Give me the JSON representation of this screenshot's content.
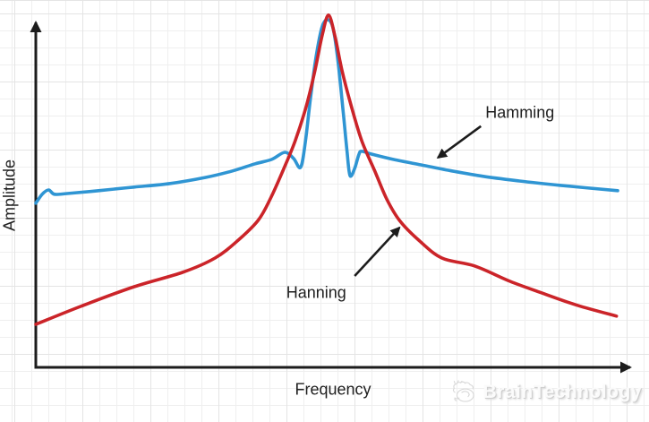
{
  "watermark": {
    "text": "BrainTechnology",
    "icon": "brain-icon"
  },
  "colors": {
    "background": "#ffffff",
    "axis": "#1c1c1c",
    "hamming_blue": "#2f95d3",
    "hanning_red": "#cb2429",
    "grid_minor": "#efefef",
    "grid_major": "#e4e4e4",
    "label_text": "#1f1f1f",
    "watermark_text": "#fbfbfb"
  },
  "chart_data": {
    "type": "line",
    "title": "",
    "xlabel": "Frequency",
    "ylabel": "Amplitude",
    "x_range": [
      0,
      1
    ],
    "y_range": [
      0,
      1
    ],
    "grid": true,
    "numeric_ticks": false,
    "legend_position": "inline-annotations",
    "series": [
      {
        "name": "Hamming",
        "color": "#2f95d3",
        "points": [
          [
            0,
            0.458
          ],
          [
            0.011,
            0.483
          ],
          [
            0.022,
            0.495
          ],
          [
            0.032,
            0.483
          ],
          [
            0.054,
            0.485
          ],
          [
            0.108,
            0.493
          ],
          [
            0.169,
            0.503
          ],
          [
            0.231,
            0.513
          ],
          [
            0.292,
            0.53
          ],
          [
            0.338,
            0.548
          ],
          [
            0.377,
            0.568
          ],
          [
            0.405,
            0.58
          ],
          [
            0.428,
            0.6
          ],
          [
            0.443,
            0.583
          ],
          [
            0.455,
            0.558
          ],
          [
            0.463,
            0.625
          ],
          [
            0.472,
            0.75
          ],
          [
            0.482,
            0.87
          ],
          [
            0.492,
            0.95
          ],
          [
            0.502,
            0.97
          ],
          [
            0.511,
            0.945
          ],
          [
            0.52,
            0.845
          ],
          [
            0.529,
            0.7
          ],
          [
            0.535,
            0.6
          ],
          [
            0.54,
            0.535
          ],
          [
            0.548,
            0.555
          ],
          [
            0.555,
            0.593
          ],
          [
            0.56,
            0.603
          ],
          [
            0.577,
            0.595
          ],
          [
            0.615,
            0.58
          ],
          [
            0.662,
            0.565
          ],
          [
            0.715,
            0.548
          ],
          [
            0.769,
            0.533
          ],
          [
            0.831,
            0.52
          ],
          [
            0.9,
            0.508
          ],
          [
            1.0,
            0.493
          ]
        ]
      },
      {
        "name": "Hanning",
        "color": "#cb2429",
        "points": [
          [
            0,
            0.12
          ],
          [
            0.077,
            0.17
          ],
          [
            0.169,
            0.225
          ],
          [
            0.252,
            0.265
          ],
          [
            0.308,
            0.305
          ],
          [
            0.348,
            0.355
          ],
          [
            0.382,
            0.41
          ],
          [
            0.403,
            0.47
          ],
          [
            0.425,
            0.55
          ],
          [
            0.446,
            0.633
          ],
          [
            0.465,
            0.73
          ],
          [
            0.48,
            0.83
          ],
          [
            0.492,
            0.925
          ],
          [
            0.503,
            0.983
          ],
          [
            0.514,
            0.925
          ],
          [
            0.526,
            0.83
          ],
          [
            0.542,
            0.73
          ],
          [
            0.56,
            0.633
          ],
          [
            0.582,
            0.55
          ],
          [
            0.603,
            0.47
          ],
          [
            0.625,
            0.41
          ],
          [
            0.658,
            0.355
          ],
          [
            0.698,
            0.305
          ],
          [
            0.754,
            0.283
          ],
          [
            0.815,
            0.24
          ],
          [
            0.869,
            0.208
          ],
          [
            0.931,
            0.173
          ],
          [
            0.998,
            0.143
          ]
        ]
      }
    ],
    "annotations": [
      {
        "label": "Hamming",
        "series": "Hamming",
        "label_pos": [
          0.832,
          0.71
        ],
        "arrow_from": [
          0.765,
          0.673
        ],
        "arrow_to": [
          0.691,
          0.585
        ]
      },
      {
        "label": "Hanning",
        "series": "Hanning",
        "label_pos": [
          0.482,
          0.208
        ],
        "arrow_from": [
          0.548,
          0.255
        ],
        "arrow_to": [
          0.625,
          0.39
        ]
      }
    ]
  }
}
